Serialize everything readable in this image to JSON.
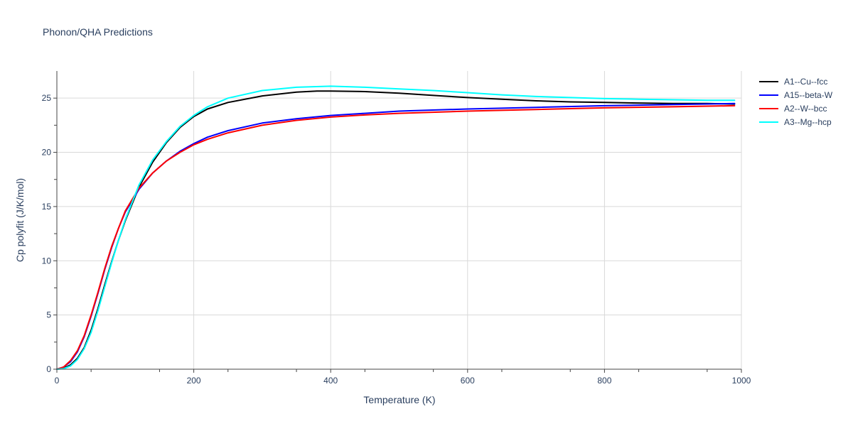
{
  "chart_data": {
    "type": "line",
    "title": "Phonon/QHA Predictions",
    "xlabel": "Temperature (K)",
    "ylabel": "Cp polyfit (J/K/mol)",
    "xlim": [
      0,
      1000
    ],
    "ylim": [
      0,
      27.5
    ],
    "x_ticks": [
      0,
      200,
      400,
      600,
      800,
      1000
    ],
    "y_ticks": [
      0,
      5,
      10,
      15,
      20,
      25
    ],
    "grid": true,
    "legend_position": "top-right",
    "series": [
      {
        "name": "A1--Cu--fcc",
        "color": "#000000",
        "points": [
          [
            0,
            0
          ],
          [
            10,
            0.1
          ],
          [
            20,
            0.4
          ],
          [
            30,
            1.0
          ],
          [
            40,
            2.0
          ],
          [
            50,
            3.6
          ],
          [
            60,
            5.6
          ],
          [
            70,
            7.8
          ],
          [
            80,
            9.9
          ],
          [
            90,
            11.9
          ],
          [
            100,
            13.7
          ],
          [
            120,
            16.8
          ],
          [
            140,
            19.1
          ],
          [
            160,
            20.9
          ],
          [
            180,
            22.3
          ],
          [
            200,
            23.3
          ],
          [
            220,
            24.0
          ],
          [
            250,
            24.6
          ],
          [
            300,
            25.2
          ],
          [
            350,
            25.55
          ],
          [
            380,
            25.65
          ],
          [
            400,
            25.65
          ],
          [
            450,
            25.6
          ],
          [
            500,
            25.45
          ],
          [
            550,
            25.25
          ],
          [
            600,
            25.05
          ],
          [
            650,
            24.9
          ],
          [
            700,
            24.75
          ],
          [
            750,
            24.65
          ],
          [
            800,
            24.6
          ],
          [
            850,
            24.55
          ],
          [
            900,
            24.5
          ],
          [
            950,
            24.5
          ],
          [
            990,
            24.45
          ]
        ]
      },
      {
        "name": "A15--beta-W",
        "color": "#0000ff",
        "points": [
          [
            0,
            0
          ],
          [
            10,
            0.2
          ],
          [
            20,
            0.7
          ],
          [
            30,
            1.6
          ],
          [
            40,
            3.0
          ],
          [
            50,
            4.9
          ],
          [
            60,
            7.0
          ],
          [
            70,
            9.2
          ],
          [
            80,
            11.2
          ],
          [
            90,
            13.0
          ],
          [
            100,
            14.5
          ],
          [
            120,
            16.6
          ],
          [
            140,
            18.1
          ],
          [
            160,
            19.2
          ],
          [
            180,
            20.1
          ],
          [
            200,
            20.8
          ],
          [
            220,
            21.4
          ],
          [
            250,
            22.0
          ],
          [
            300,
            22.7
          ],
          [
            350,
            23.1
          ],
          [
            400,
            23.4
          ],
          [
            450,
            23.6
          ],
          [
            500,
            23.8
          ],
          [
            600,
            24.0
          ],
          [
            700,
            24.15
          ],
          [
            800,
            24.3
          ],
          [
            900,
            24.4
          ],
          [
            990,
            24.5
          ]
        ]
      },
      {
        "name": "A2--W--bcc",
        "color": "#ff0000",
        "points": [
          [
            0,
            0
          ],
          [
            10,
            0.2
          ],
          [
            20,
            0.8
          ],
          [
            30,
            1.7
          ],
          [
            40,
            3.1
          ],
          [
            50,
            5.0
          ],
          [
            60,
            7.1
          ],
          [
            70,
            9.3
          ],
          [
            80,
            11.3
          ],
          [
            90,
            13.0
          ],
          [
            100,
            14.6
          ],
          [
            120,
            16.7
          ],
          [
            140,
            18.1
          ],
          [
            160,
            19.2
          ],
          [
            180,
            20.0
          ],
          [
            200,
            20.7
          ],
          [
            220,
            21.2
          ],
          [
            250,
            21.8
          ],
          [
            300,
            22.5
          ],
          [
            350,
            22.95
          ],
          [
            400,
            23.25
          ],
          [
            450,
            23.45
          ],
          [
            500,
            23.6
          ],
          [
            600,
            23.8
          ],
          [
            700,
            23.95
          ],
          [
            800,
            24.1
          ],
          [
            900,
            24.2
          ],
          [
            990,
            24.3
          ]
        ]
      },
      {
        "name": "A3--Mg--hcp",
        "color": "#00ffff",
        "points": [
          [
            0,
            0
          ],
          [
            10,
            0.05
          ],
          [
            20,
            0.3
          ],
          [
            30,
            0.9
          ],
          [
            40,
            1.9
          ],
          [
            50,
            3.4
          ],
          [
            60,
            5.4
          ],
          [
            70,
            7.6
          ],
          [
            80,
            9.8
          ],
          [
            90,
            11.9
          ],
          [
            100,
            13.8
          ],
          [
            120,
            17.0
          ],
          [
            140,
            19.3
          ],
          [
            160,
            21.0
          ],
          [
            180,
            22.4
          ],
          [
            200,
            23.4
          ],
          [
            220,
            24.2
          ],
          [
            250,
            25.0
          ],
          [
            300,
            25.7
          ],
          [
            350,
            26.0
          ],
          [
            400,
            26.1
          ],
          [
            450,
            26.0
          ],
          [
            500,
            25.85
          ],
          [
            550,
            25.7
          ],
          [
            600,
            25.5
          ],
          [
            650,
            25.3
          ],
          [
            700,
            25.15
          ],
          [
            750,
            25.05
          ],
          [
            800,
            24.95
          ],
          [
            850,
            24.9
          ],
          [
            900,
            24.85
          ],
          [
            950,
            24.8
          ],
          [
            990,
            24.8
          ]
        ]
      }
    ]
  }
}
